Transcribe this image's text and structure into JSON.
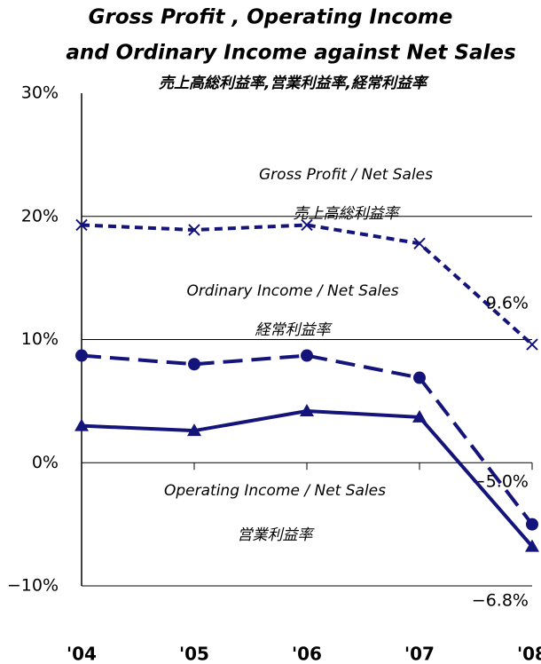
{
  "chart_data": {
    "type": "line",
    "title": "Gross Profit , Operating Income",
    "subtitle": "and Ordinary Income against Net Sales",
    "subtitle_jp": "売上高総利益率,営業利益率,経常利益率",
    "categories": [
      "'04",
      "'05",
      "'06",
      "'07",
      "'08"
    ],
    "series": [
      {
        "name": "Gross Profit / Net Sales",
        "name_jp": "売上高総利益率",
        "color": "#14147a",
        "dash": "short",
        "marker": "x",
        "values": [
          19.3,
          18.9,
          19.3,
          17.8,
          9.6
        ],
        "value_labels": [
          null,
          null,
          null,
          null,
          "9.6%"
        ]
      },
      {
        "name": "Ordinary Income / Net Sales",
        "name_jp": "経常利益率",
        "color": "#14147a",
        "dash": "long",
        "marker": "circle",
        "values": [
          8.7,
          8.0,
          8.7,
          6.9,
          -5.0
        ],
        "value_labels": [
          null,
          null,
          null,
          null,
          "−5.0%"
        ]
      },
      {
        "name": "Operating Income / Net Sales",
        "name_jp": "営業利益率",
        "color": "#14147a",
        "dash": "solid",
        "marker": "triangle",
        "values": [
          3.0,
          2.6,
          4.2,
          3.7,
          -6.8
        ],
        "value_labels": [
          null,
          null,
          null,
          null,
          "−6.8%"
        ]
      }
    ],
    "ylim": [
      -10,
      30
    ],
    "yticks": [
      {
        "value": -10,
        "label": "−10%"
      },
      {
        "value": 0,
        "label": "0%"
      },
      {
        "value": 10,
        "label": "10%"
      },
      {
        "value": 20,
        "label": "20%"
      },
      {
        "value": 30,
        "label": "30%"
      }
    ],
    "grid": true
  }
}
